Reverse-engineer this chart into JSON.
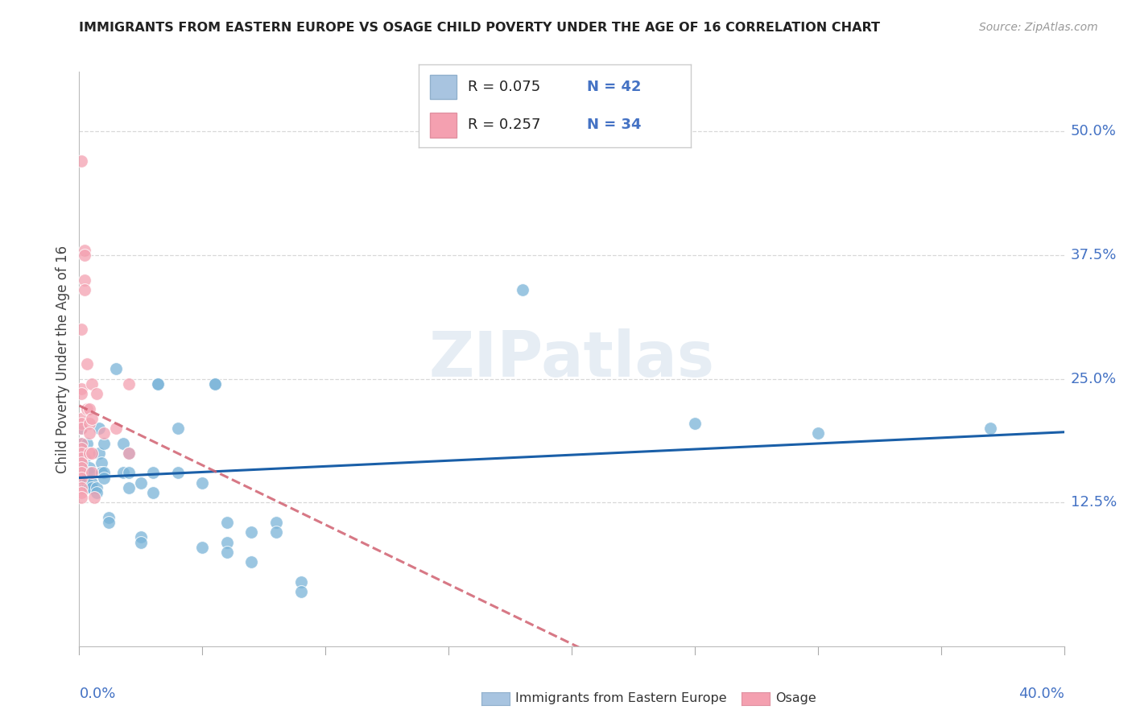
{
  "title": "IMMIGRANTS FROM EASTERN EUROPE VS OSAGE CHILD POVERTY UNDER THE AGE OF 16 CORRELATION CHART",
  "source": "Source: ZipAtlas.com",
  "ylabel": "Child Poverty Under the Age of 16",
  "ytick_vals": [
    0.125,
    0.25,
    0.375,
    0.5
  ],
  "ytick_labels": [
    "12.5%",
    "25.0%",
    "37.5%",
    "50.0%"
  ],
  "xlim": [
    0.0,
    0.4
  ],
  "ylim": [
    -0.02,
    0.56
  ],
  "watermark": "ZIPatlas",
  "blue_color": "#7ab4d8",
  "pink_color": "#f4a0b0",
  "trendline_blue_color": "#1a5fa8",
  "trendline_pink_color": "#d06070",
  "blue_points": [
    [
      0.001,
      0.165
    ],
    [
      0.001,
      0.175
    ],
    [
      0.001,
      0.2
    ],
    [
      0.001,
      0.185
    ],
    [
      0.002,
      0.17
    ],
    [
      0.002,
      0.155
    ],
    [
      0.002,
      0.155
    ],
    [
      0.002,
      0.145
    ],
    [
      0.003,
      0.145
    ],
    [
      0.003,
      0.155
    ],
    [
      0.003,
      0.185
    ],
    [
      0.003,
      0.155
    ],
    [
      0.004,
      0.16
    ],
    [
      0.004,
      0.14
    ],
    [
      0.004,
      0.155
    ],
    [
      0.005,
      0.145
    ],
    [
      0.005,
      0.14
    ],
    [
      0.007,
      0.14
    ],
    [
      0.007,
      0.135
    ],
    [
      0.008,
      0.2
    ],
    [
      0.008,
      0.175
    ],
    [
      0.009,
      0.165
    ],
    [
      0.009,
      0.155
    ],
    [
      0.009,
      0.155
    ],
    [
      0.01,
      0.185
    ],
    [
      0.01,
      0.155
    ],
    [
      0.01,
      0.15
    ],
    [
      0.012,
      0.11
    ],
    [
      0.012,
      0.105
    ],
    [
      0.015,
      0.26
    ],
    [
      0.018,
      0.185
    ],
    [
      0.018,
      0.155
    ],
    [
      0.02,
      0.175
    ],
    [
      0.02,
      0.155
    ],
    [
      0.02,
      0.14
    ],
    [
      0.025,
      0.145
    ],
    [
      0.025,
      0.09
    ],
    [
      0.025,
      0.085
    ],
    [
      0.03,
      0.155
    ],
    [
      0.03,
      0.135
    ],
    [
      0.032,
      0.245
    ],
    [
      0.032,
      0.245
    ],
    [
      0.04,
      0.2
    ],
    [
      0.04,
      0.155
    ],
    [
      0.05,
      0.145
    ],
    [
      0.05,
      0.08
    ],
    [
      0.055,
      0.245
    ],
    [
      0.055,
      0.245
    ],
    [
      0.06,
      0.105
    ],
    [
      0.06,
      0.085
    ],
    [
      0.06,
      0.075
    ],
    [
      0.07,
      0.095
    ],
    [
      0.07,
      0.065
    ],
    [
      0.08,
      0.105
    ],
    [
      0.08,
      0.095
    ],
    [
      0.09,
      0.045
    ],
    [
      0.09,
      0.035
    ],
    [
      0.18,
      0.34
    ],
    [
      0.25,
      0.205
    ],
    [
      0.3,
      0.195
    ],
    [
      0.37,
      0.2
    ]
  ],
  "pink_points": [
    [
      0.001,
      0.47
    ],
    [
      0.001,
      0.3
    ],
    [
      0.001,
      0.24
    ],
    [
      0.001,
      0.235
    ],
    [
      0.001,
      0.21
    ],
    [
      0.001,
      0.205
    ],
    [
      0.001,
      0.2
    ],
    [
      0.001,
      0.185
    ],
    [
      0.001,
      0.18
    ],
    [
      0.001,
      0.175
    ],
    [
      0.001,
      0.17
    ],
    [
      0.001,
      0.165
    ],
    [
      0.001,
      0.16
    ],
    [
      0.001,
      0.155
    ],
    [
      0.001,
      0.15
    ],
    [
      0.001,
      0.14
    ],
    [
      0.001,
      0.135
    ],
    [
      0.001,
      0.13
    ],
    [
      0.002,
      0.38
    ],
    [
      0.002,
      0.375
    ],
    [
      0.002,
      0.35
    ],
    [
      0.002,
      0.34
    ],
    [
      0.003,
      0.265
    ],
    [
      0.003,
      0.22
    ],
    [
      0.004,
      0.22
    ],
    [
      0.004,
      0.205
    ],
    [
      0.004,
      0.195
    ],
    [
      0.004,
      0.175
    ],
    [
      0.005,
      0.245
    ],
    [
      0.005,
      0.21
    ],
    [
      0.005,
      0.175
    ],
    [
      0.005,
      0.155
    ],
    [
      0.006,
      0.13
    ],
    [
      0.007,
      0.235
    ],
    [
      0.01,
      0.195
    ],
    [
      0.015,
      0.2
    ],
    [
      0.02,
      0.245
    ],
    [
      0.02,
      0.175
    ]
  ]
}
